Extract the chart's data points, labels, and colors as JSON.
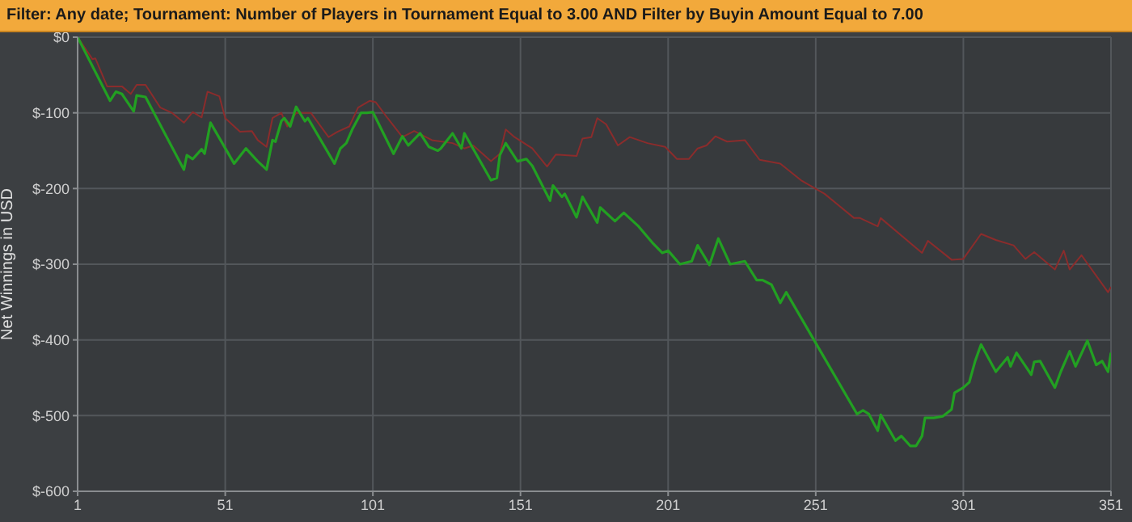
{
  "chart_data": {
    "type": "line",
    "title": "Filter: Any date; Tournament: Number of Players in Tournament Equal to 3.00 AND Filter by Buyin Amount Equal to 7.00",
    "ylabel": "Net Winnings in USD",
    "xlim": [
      1,
      351
    ],
    "xticks": [
      1,
      51,
      101,
      151,
      201,
      251,
      301,
      351
    ],
    "ylim": [
      -600,
      0
    ],
    "yticks": [
      {
        "value": 0,
        "label": "$0"
      },
      {
        "value": -100,
        "label": "$-100"
      },
      {
        "value": -200,
        "label": "$-200"
      },
      {
        "value": -300,
        "label": "$-300"
      },
      {
        "value": -400,
        "label": "$-400"
      },
      {
        "value": -500,
        "label": "$-500"
      },
      {
        "value": -600,
        "label": "$-600"
      }
    ],
    "grid": true,
    "marker": "none",
    "line_style": "solid",
    "series": [
      {
        "color": "#8b2c2c",
        "x": [
          1,
          6,
          7,
          11,
          16,
          19,
          21,
          24,
          29,
          33,
          37,
          40,
          43,
          45,
          49,
          51,
          56,
          60,
          62,
          65,
          67,
          70,
          72,
          75,
          80,
          86,
          89,
          93,
          96,
          100,
          102,
          106,
          111,
          115,
          121,
          128,
          132,
          135,
          141,
          144,
          146,
          149,
          155,
          160,
          163,
          170,
          172,
          175,
          177,
          180,
          184,
          188,
          194,
          200,
          204,
          208,
          211,
          214,
          217,
          221,
          227,
          232,
          239,
          246,
          254,
          264,
          266,
          272,
          273,
          287,
          289,
          297,
          301,
          307,
          312,
          318,
          322,
          325,
          332,
          335,
          337,
          341,
          350,
          351
        ],
        "values": [
          0,
          -29,
          -28,
          -65,
          -65,
          -75,
          -63,
          -63,
          -93,
          -100,
          -113,
          -99,
          -106,
          -72,
          -78,
          -107,
          -125,
          -124,
          -136,
          -145,
          -107,
          -100,
          -118,
          -100,
          -100,
          -132,
          -125,
          -118,
          -93,
          -84,
          -86,
          -107,
          -132,
          -124,
          -136,
          -140,
          -147,
          -143,
          -164,
          -154,
          -122,
          -132,
          -147,
          -171,
          -155,
          -157,
          -134,
          -132,
          -107,
          -115,
          -143,
          -132,
          -140,
          -145,
          -161,
          -161,
          -147,
          -143,
          -131,
          -138,
          -136,
          -162,
          -167,
          -189,
          -207,
          -239,
          -239,
          -250,
          -239,
          -285,
          -269,
          -294,
          -293,
          -260,
          -268,
          -275,
          -293,
          -284,
          -307,
          -282,
          -307,
          -288,
          -337,
          -330
        ]
      },
      {
        "color": "#22a022",
        "x": [
          1,
          12,
          14,
          16,
          20,
          21,
          24,
          37,
          38,
          40,
          43,
          44,
          46,
          54,
          58,
          62,
          65,
          67,
          68,
          70,
          71,
          73,
          75,
          78,
          79,
          88,
          90,
          92,
          94,
          97,
          99,
          101,
          108,
          111,
          113,
          117,
          120,
          123,
          124,
          128,
          131,
          132,
          141,
          143,
          144,
          146,
          150,
          153,
          155,
          161,
          162,
          165,
          166,
          170,
          172,
          177,
          178,
          183,
          186,
          191,
          196,
          199,
          201,
          205,
          209,
          211,
          215,
          218,
          222,
          227,
          231,
          233,
          236,
          239,
          241,
          265,
          267,
          269,
          272,
          273,
          278,
          280,
          283,
          285,
          287,
          288,
          291,
          294,
          297,
          298,
          301,
          303,
          305,
          307,
          312,
          316,
          317,
          319,
          324,
          325,
          327,
          332,
          334,
          337,
          339,
          343,
          346,
          348,
          350,
          351
        ],
        "values": [
          0,
          -84,
          -72,
          -75,
          -98,
          -77,
          -79,
          -175,
          -156,
          -161,
          -148,
          -154,
          -113,
          -167,
          -147,
          -164,
          -175,
          -136,
          -138,
          -111,
          -107,
          -118,
          -92,
          -111,
          -107,
          -167,
          -147,
          -140,
          -122,
          -100,
          -100,
          -99,
          -154,
          -131,
          -143,
          -127,
          -145,
          -150,
          -147,
          -127,
          -147,
          -127,
          -189,
          -186,
          -156,
          -140,
          -164,
          -161,
          -170,
          -216,
          -196,
          -211,
          -207,
          -238,
          -211,
          -245,
          -225,
          -243,
          -232,
          -250,
          -273,
          -285,
          -282,
          -300,
          -296,
          -275,
          -301,
          -266,
          -300,
          -296,
          -321,
          -321,
          -327,
          -351,
          -337,
          -498,
          -493,
          -498,
          -520,
          -499,
          -533,
          -527,
          -540,
          -540,
          -527,
          -503,
          -503,
          -501,
          -492,
          -470,
          -463,
          -456,
          -428,
          -406,
          -442,
          -423,
          -435,
          -417,
          -446,
          -429,
          -428,
          -463,
          -442,
          -415,
          -435,
          -401,
          -433,
          -428,
          -442,
          -417
        ]
      }
    ]
  }
}
